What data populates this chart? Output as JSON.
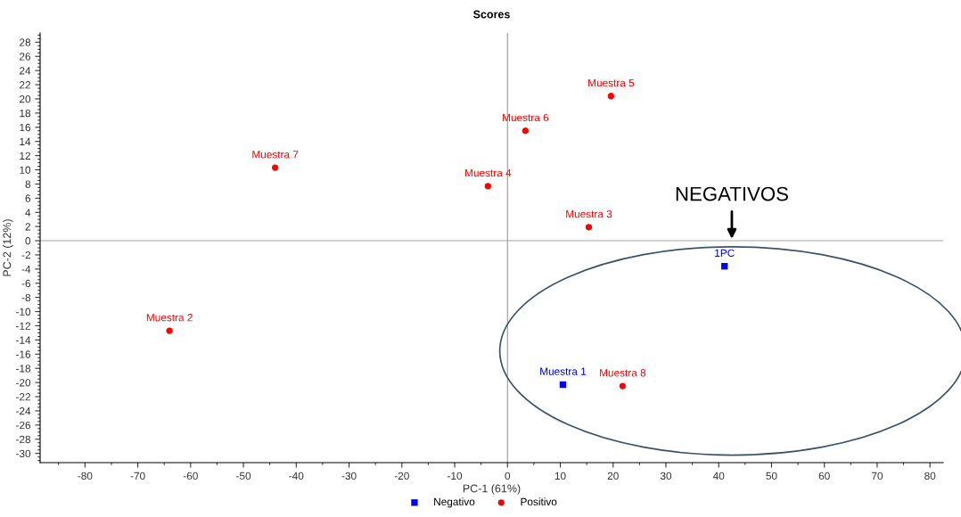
{
  "chart_data": {
    "type": "scatter",
    "title": "Scores",
    "xlabel": "PC-1 (61%)",
    "ylabel": "PC-2 (12%)",
    "xlim": [
      -88.5,
      82.5
    ],
    "ylim": [
      -31.3,
      29.3
    ],
    "xticks": [
      -80,
      -70,
      -60,
      -50,
      -40,
      -30,
      -20,
      -10,
      0,
      10,
      20,
      30,
      40,
      50,
      60,
      70,
      80
    ],
    "yticks": [
      -30,
      -28,
      -26,
      -24,
      -22,
      -20,
      -18,
      -16,
      -14,
      -12,
      -10,
      -8,
      -6,
      -4,
      -2,
      0,
      2,
      4,
      6,
      8,
      10,
      12,
      14,
      16,
      18,
      20,
      22,
      24,
      26,
      28
    ],
    "grid": false,
    "legend": "bottom",
    "series": [
      {
        "name": "Negativo",
        "color": "#0000ff",
        "marker": "square",
        "x": [
          10.5,
          41.1
        ],
        "values": [
          -20.3,
          -3.6
        ]
      },
      {
        "name": "Positivo",
        "color": "#ff0000",
        "marker": "circle",
        "x": [
          -64,
          15.4,
          -3.7,
          19.6,
          3.4,
          -44,
          21.8
        ],
        "values": [
          -12.7,
          1.9,
          7.7,
          20.4,
          15.5,
          10.3,
          -20.5
        ]
      }
    ],
    "ref_lines": [
      {
        "axis": "x",
        "value": 0,
        "color": "#999999"
      },
      {
        "axis": "y",
        "value": 0,
        "color": "#a6a6a6"
      }
    ],
    "annotations": [
      {
        "text": "Muestra 1",
        "x": 10.5,
        "y": -20.3
      },
      {
        "text": "1PC",
        "x": 41.1,
        "y": -3.6
      },
      {
        "text": "Muestra 2",
        "x": -64,
        "y": -12.7
      },
      {
        "text": "Muestra 3",
        "x": 15.4,
        "y": 1.9
      },
      {
        "text": "Muestra 4",
        "x": -3.7,
        "y": 7.7
      },
      {
        "text": "Muestra 5",
        "x": 19.6,
        "y": 20.4
      },
      {
        "text": "Muestra 6",
        "x": 3.4,
        "y": 15.5
      },
      {
        "text": "Muestra 7",
        "x": -44,
        "y": 10.3
      },
      {
        "text": "Muestra 8",
        "x": 21.8,
        "y": -20.5
      },
      "NEGATIVOS"
    ]
  }
}
